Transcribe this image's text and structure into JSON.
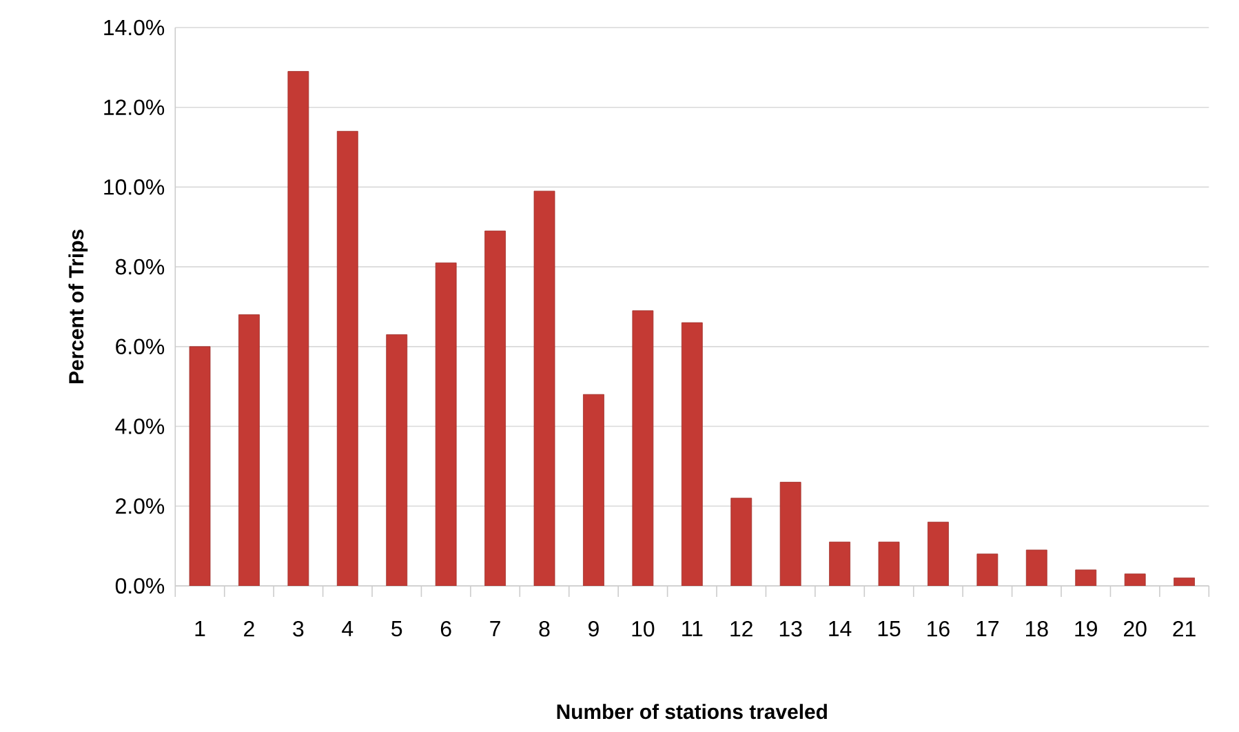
{
  "chart_data": {
    "type": "bar",
    "xlabel": "Number of stations traveled",
    "ylabel": "Percent of Trips",
    "categories": [
      "1",
      "2",
      "3",
      "4",
      "5",
      "6",
      "7",
      "8",
      "9",
      "10",
      "11",
      "12",
      "13",
      "14",
      "15",
      "16",
      "17",
      "18",
      "19",
      "20",
      "21"
    ],
    "values": [
      6.0,
      6.8,
      12.9,
      11.4,
      6.3,
      8.1,
      8.9,
      9.9,
      4.8,
      6.9,
      6.6,
      2.2,
      2.6,
      1.1,
      1.1,
      1.6,
      0.8,
      0.9,
      0.4,
      0.3,
      0.2
    ],
    "color": "#c43a34",
    "ylim": [
      0,
      14
    ],
    "yticks": [
      {
        "value": 0,
        "label": "0.0%"
      },
      {
        "value": 2,
        "label": "2.0%"
      },
      {
        "value": 4,
        "label": "4.0%"
      },
      {
        "value": 6,
        "label": "6.0%"
      },
      {
        "value": 8,
        "label": "8.0%"
      },
      {
        "value": 10,
        "label": "10.0%"
      },
      {
        "value": 12,
        "label": "12.0%"
      },
      {
        "value": 14,
        "label": "14.0%"
      }
    ],
    "grid": "y"
  }
}
